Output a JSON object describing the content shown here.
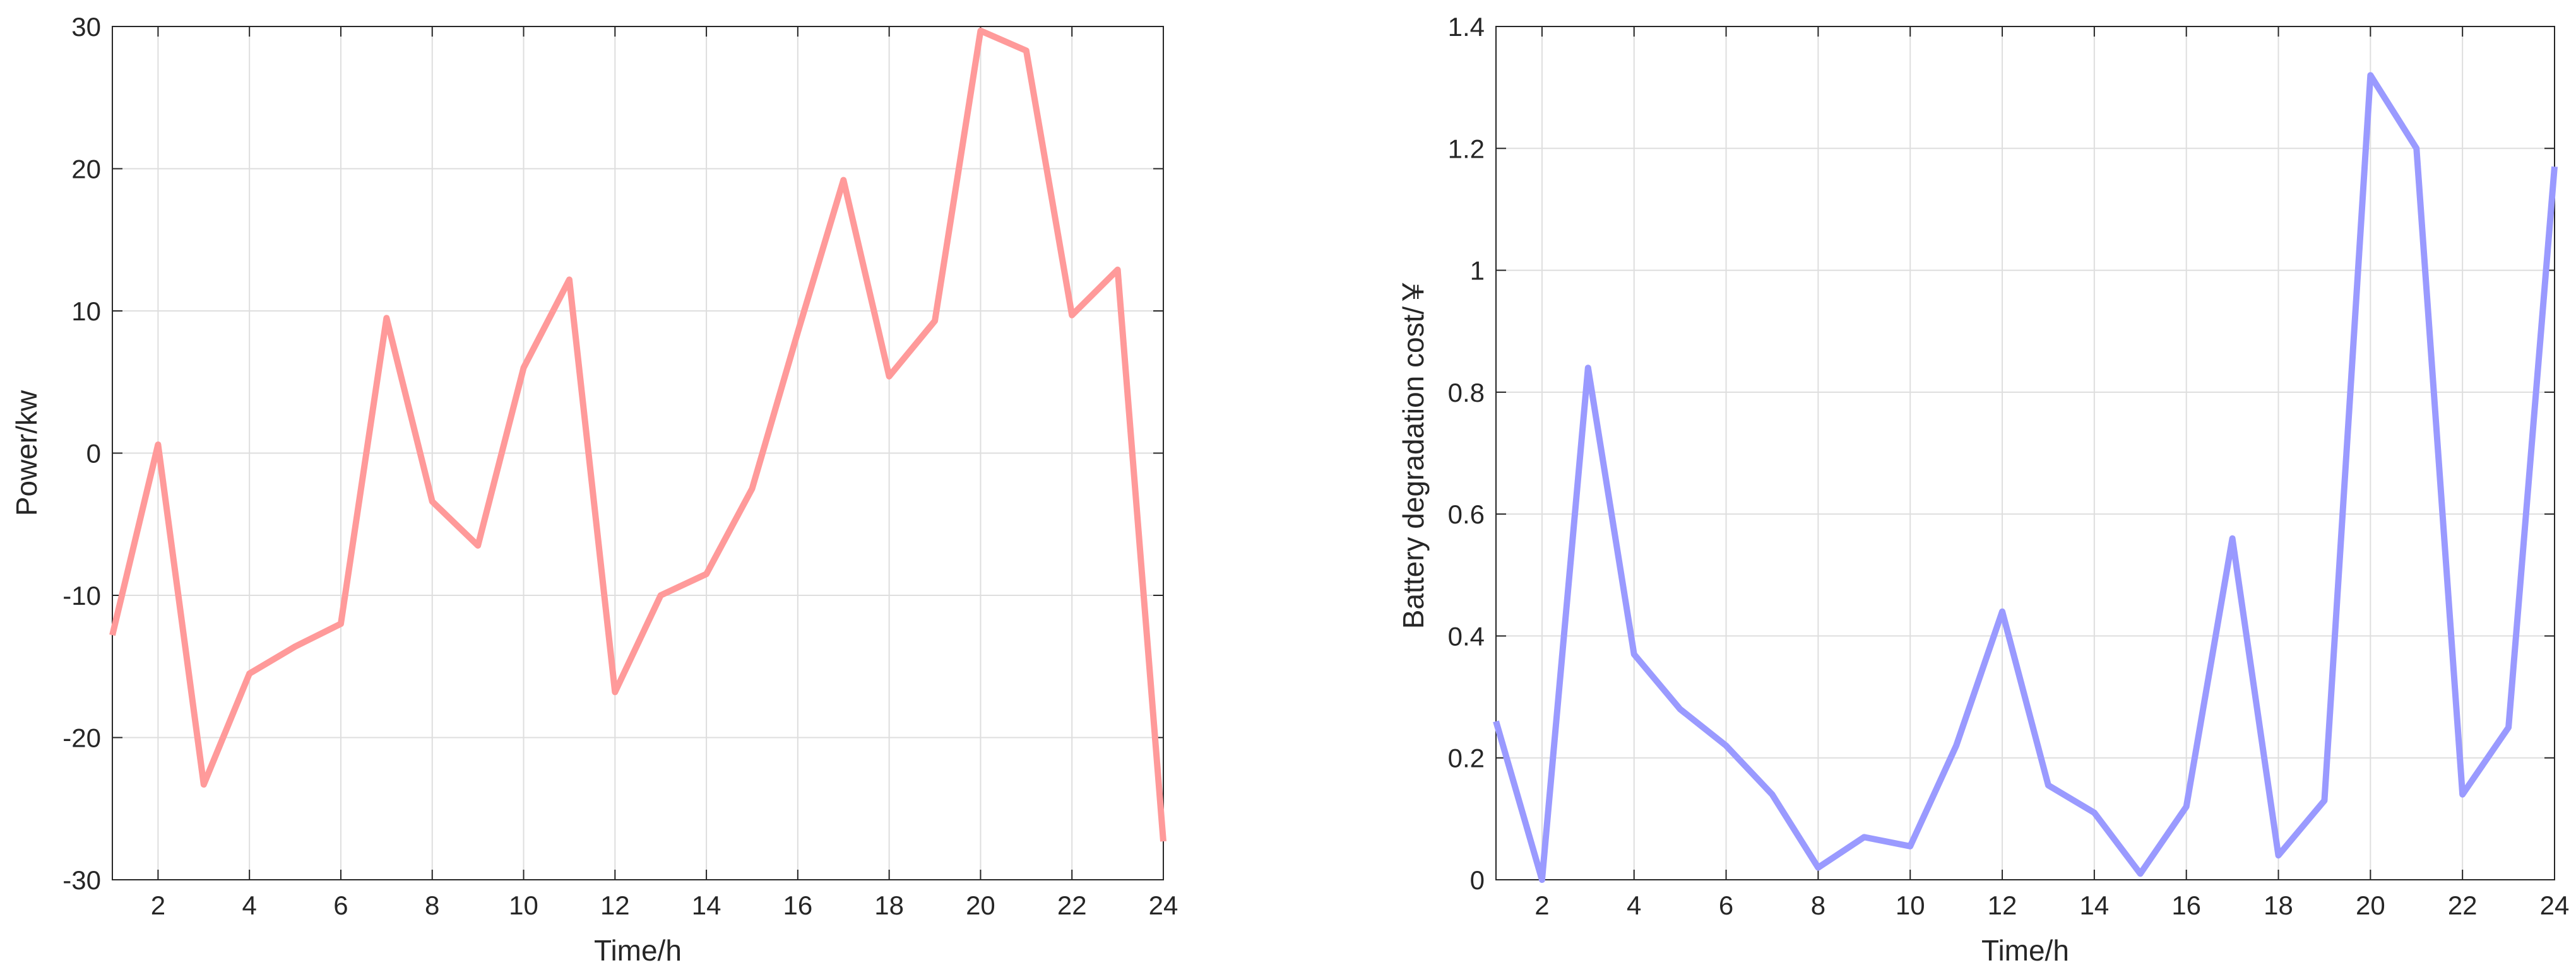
{
  "chart_data": [
    {
      "type": "line",
      "title": "",
      "xlabel": "Time/h",
      "ylabel": "Power/kw",
      "xlim": [
        1,
        24
      ],
      "ylim": [
        -30,
        30
      ],
      "xticks": [
        2,
        4,
        6,
        8,
        10,
        12,
        14,
        16,
        18,
        20,
        22,
        24
      ],
      "xtick_labels": [
        "2",
        "4",
        "6",
        "8",
        "10",
        "12",
        "14",
        "16",
        "18",
        "20",
        "22",
        "24"
      ],
      "yticks": [
        -30,
        -20,
        -10,
        0,
        10,
        20,
        30
      ],
      "ytick_labels": [
        "-30",
        "-20",
        "-10",
        "0",
        "10",
        "20",
        "30"
      ],
      "grid": true,
      "line_color": "#ff9a9a",
      "series": [
        {
          "x": [
            1,
            2,
            3,
            4,
            5,
            6,
            7,
            8,
            9,
            10,
            11,
            12,
            13,
            14,
            15,
            16,
            17,
            18,
            19,
            20,
            21,
            22,
            23,
            24
          ],
          "values": [
            -12.8,
            0.6,
            -23.3,
            -15.5,
            -13.6,
            -12.0,
            9.5,
            -3.4,
            -6.5,
            6.0,
            12.2,
            -16.8,
            -10.0,
            -8.5,
            -2.5,
            8.5,
            19.2,
            5.4,
            9.3,
            29.7,
            28.3,
            9.7,
            12.9,
            -27.3
          ]
        }
      ]
    },
    {
      "type": "line",
      "title": "",
      "xlabel": "Time/h",
      "ylabel": "Battery degradation cost/￥",
      "xlim": [
        1,
        24
      ],
      "ylim": [
        0,
        1.4
      ],
      "xticks": [
        2,
        4,
        6,
        8,
        10,
        12,
        14,
        16,
        18,
        20,
        22,
        24
      ],
      "xtick_labels": [
        "2",
        "4",
        "6",
        "8",
        "10",
        "12",
        "14",
        "16",
        "18",
        "20",
        "22",
        "24"
      ],
      "yticks": [
        0,
        0.2,
        0.4,
        0.6,
        0.8,
        1,
        1.2,
        1.4
      ],
      "ytick_labels": [
        "0",
        "0.2",
        "0.4",
        "0.6",
        "0.8",
        "1",
        "1.2",
        "1.4"
      ],
      "grid": true,
      "line_color": "#9a9aff",
      "series": [
        {
          "x": [
            1,
            2,
            3,
            4,
            5,
            6,
            7,
            8,
            9,
            10,
            11,
            12,
            13,
            14,
            15,
            16,
            17,
            18,
            19,
            20,
            21,
            22,
            23,
            24
          ],
          "values": [
            0.26,
            0.0,
            0.84,
            0.37,
            0.28,
            0.22,
            0.14,
            0.02,
            0.07,
            0.055,
            0.22,
            0.44,
            0.155,
            0.11,
            0.01,
            0.12,
            0.56,
            0.04,
            0.13,
            1.32,
            1.2,
            0.14,
            0.25,
            1.17
          ]
        }
      ]
    }
  ]
}
